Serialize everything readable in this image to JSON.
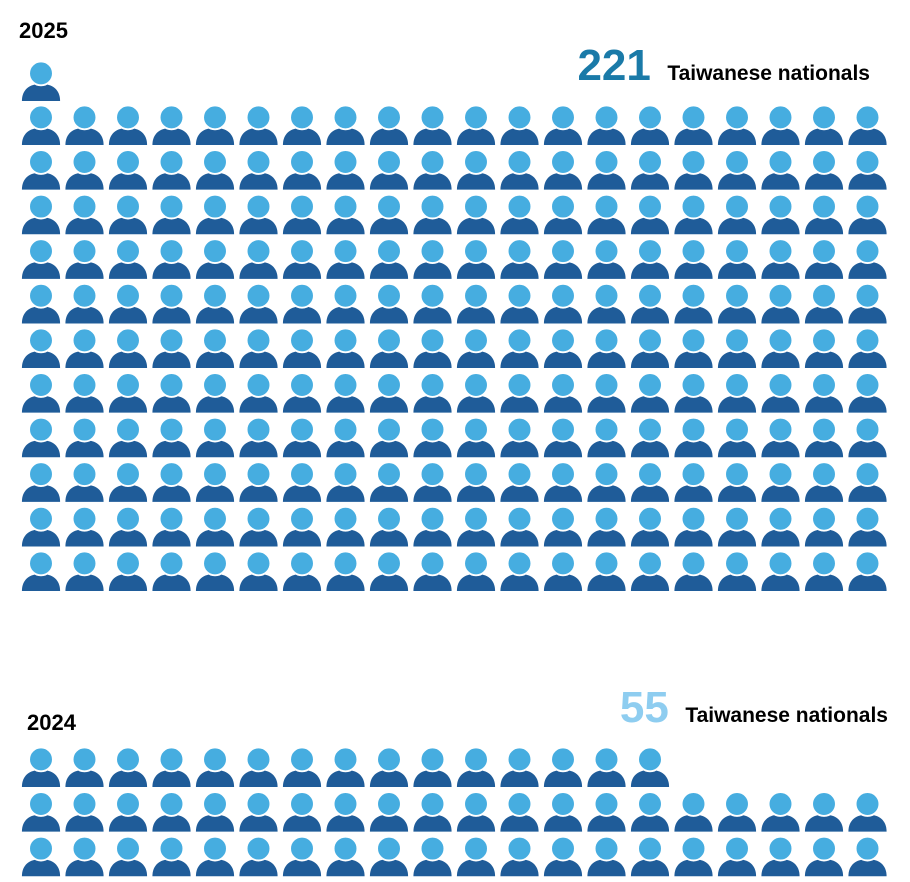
{
  "chart_data": [
    {
      "type": "pictograph",
      "year_label": "2025",
      "count_value": "221",
      "count_text": "Taiwanese nationals",
      "value": 221,
      "count_color": "#1a7aa8"
    },
    {
      "type": "pictograph",
      "year_label": "2024",
      "count_value": "55",
      "count_text": "Taiwanese nationals",
      "value": 55,
      "count_color": "#8ecdf0"
    }
  ],
  "colors": {
    "head": "#46ade0",
    "body": "#1f5c99",
    "outline": "#ffffff"
  },
  "icon": "person-icon"
}
